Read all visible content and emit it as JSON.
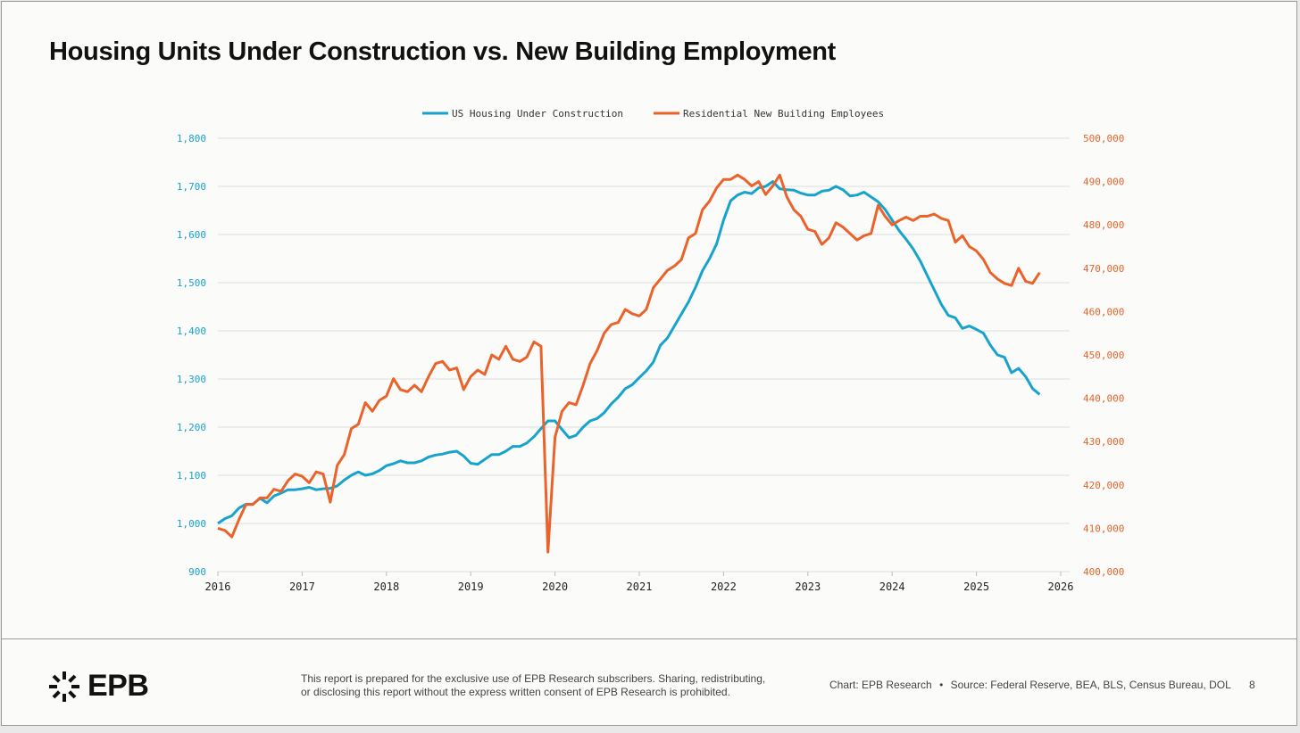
{
  "title": "Housing Units Under Construction vs. New Building Employment",
  "footer": {
    "logo_text": "EPB",
    "disclaimer_line1": "This report is prepared for the exclusive use of EPB Research subscribers. Sharing, redistributing,",
    "disclaimer_line2": "or disclosing this report without the express written consent of EPB Research is prohibited.",
    "chart_credit": "Chart: EPB Research",
    "separator": "•",
    "source": "Source: Federal Reserve, BEA, BLS, Census Bureau, DOL",
    "page_number": "8"
  },
  "colors": {
    "teal": "#18a3cd",
    "orange": "#e9632b",
    "grid": "#dcdcdc"
  },
  "chart_data": {
    "type": "line",
    "title": "Housing Units Under Construction vs. New Building Employment",
    "legend_placement": "top-center",
    "grid": true,
    "x_start": "2016-01",
    "x_frequency": "monthly",
    "xlim": [
      2016,
      2026
    ],
    "x_ticks": [
      "2016",
      "2017",
      "2018",
      "2019",
      "2020",
      "2021",
      "2022",
      "2023",
      "2024",
      "2025",
      "2026"
    ],
    "y_left": {
      "lim": [
        900,
        1800
      ],
      "ticks": [
        "900",
        "1,000",
        "1,100",
        "1,200",
        "1,300",
        "1,400",
        "1,500",
        "1,600",
        "1,700",
        "1,800"
      ]
    },
    "y_right": {
      "lim": [
        400000,
        500000
      ],
      "ticks": [
        "400,000",
        "410,000",
        "420,000",
        "430,000",
        "440,000",
        "450,000",
        "460,000",
        "470,000",
        "480,000",
        "490,000",
        "500,000"
      ]
    },
    "series": [
      {
        "name": "US Housing Under Construction",
        "axis": "left",
        "color": "#18a3cd",
        "values": [
          1000,
          1010,
          1016,
          1032,
          1040,
          1040,
          1052,
          1043,
          1057,
          1063,
          1070,
          1070,
          1072,
          1075,
          1070,
          1072,
          1073,
          1078,
          1090,
          1100,
          1107,
          1100,
          1103,
          1110,
          1120,
          1124,
          1130,
          1126,
          1126,
          1130,
          1138,
          1142,
          1144,
          1148,
          1150,
          1140,
          1125,
          1123,
          1133,
          1143,
          1143,
          1150,
          1160,
          1160,
          1167,
          1180,
          1197,
          1213,
          1213,
          1195,
          1178,
          1183,
          1200,
          1213,
          1218,
          1230,
          1248,
          1262,
          1280,
          1288,
          1303,
          1317,
          1335,
          1370,
          1385,
          1410,
          1435,
          1460,
          1490,
          1525,
          1550,
          1580,
          1630,
          1670,
          1682,
          1688,
          1685,
          1697,
          1700,
          1710,
          1695,
          1693,
          1692,
          1686,
          1682,
          1682,
          1690,
          1692,
          1700,
          1693,
          1680,
          1682,
          1688,
          1678,
          1668,
          1652,
          1630,
          1608,
          1590,
          1570,
          1545,
          1515,
          1485,
          1455,
          1432,
          1427,
          1405,
          1410,
          1403,
          1395,
          1370,
          1350,
          1345,
          1313,
          1322,
          1305,
          1280,
          1268
        ]
      },
      {
        "name": "Residential New Building Employees",
        "axis": "right",
        "color": "#e9632b",
        "values": [
          410000,
          409500,
          408000,
          412000,
          415500,
          415500,
          417000,
          417000,
          419000,
          418500,
          421000,
          422500,
          422000,
          420500,
          423000,
          422500,
          416000,
          424500,
          427000,
          433000,
          434000,
          439000,
          437000,
          439500,
          440500,
          444500,
          442000,
          441500,
          443000,
          441500,
          445000,
          448000,
          448500,
          446500,
          447000,
          442000,
          445000,
          446500,
          445500,
          450000,
          449000,
          452000,
          449000,
          448500,
          449500,
          453000,
          452000,
          404500,
          431000,
          437000,
          439000,
          438500,
          443000,
          448000,
          451000,
          455000,
          457000,
          457500,
          460500,
          459500,
          459000,
          460500,
          465500,
          467500,
          469500,
          470500,
          472000,
          477000,
          478000,
          483500,
          485500,
          488500,
          490500,
          490500,
          491500,
          490500,
          489000,
          490000,
          487000,
          489000,
          491500,
          486500,
          483500,
          482000,
          479000,
          478500,
          475500,
          477000,
          480500,
          479500,
          478000,
          476500,
          477500,
          478000,
          484500,
          482000,
          480000,
          481000,
          481800,
          481000,
          482000,
          482000,
          482500,
          481500,
          481000,
          476000,
          477500,
          475000,
          474000,
          472000,
          469000,
          467500,
          466500,
          466000,
          470000,
          467000,
          466500,
          469000
        ]
      }
    ]
  }
}
